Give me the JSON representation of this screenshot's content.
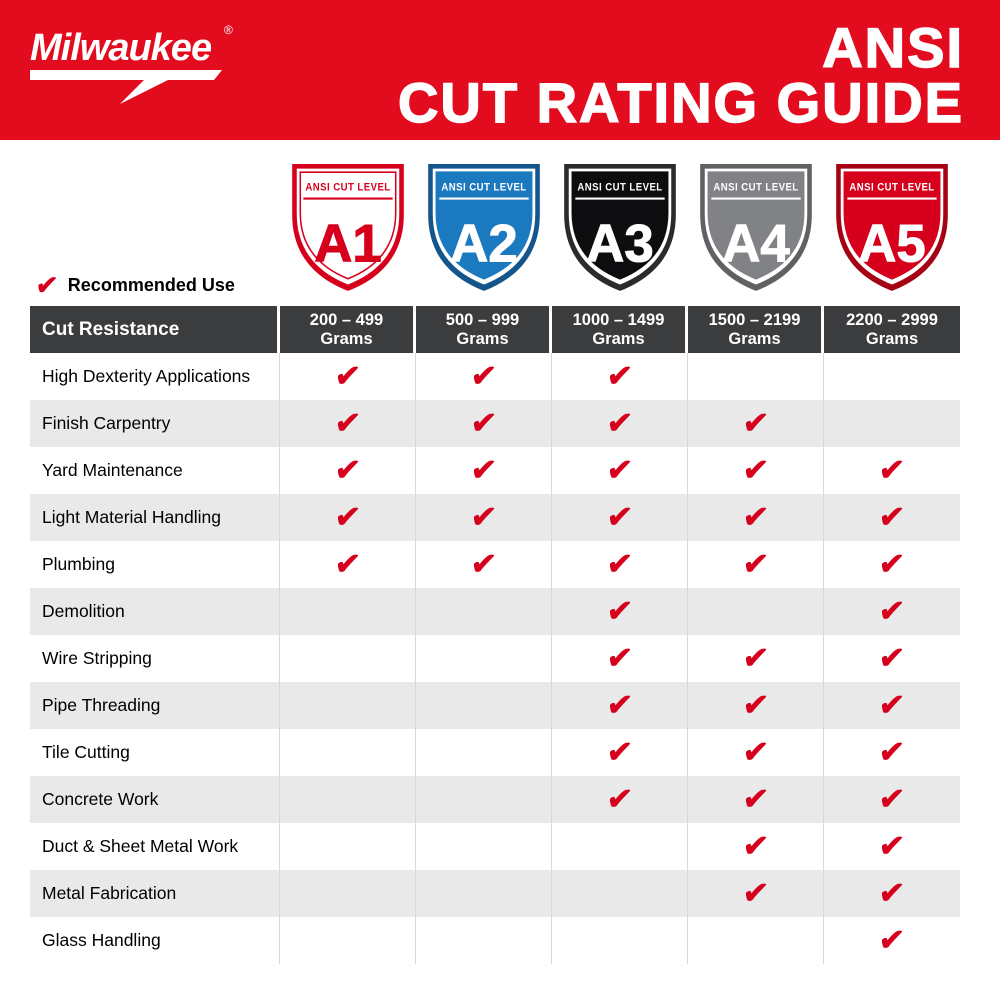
{
  "colors": {
    "banner_red": "#e30c1f",
    "check_red": "#d6001c",
    "header_row_bg": "#3b3c3e",
    "alt_row_bg": "#e9e9e9",
    "grid_line": "#d8d8d8"
  },
  "header": {
    "brand": "Milwaukee",
    "reg": "®",
    "title_line1": "ANSI",
    "title_line2": "CUT RATING GUIDE"
  },
  "levels": [
    {
      "label": "ANSI CUT LEVEL",
      "code": "A1",
      "fill": "#ffffff",
      "text_color": "#d6001c",
      "border": "#d6001c",
      "inner_stroke": "#d6001c"
    },
    {
      "label": "ANSI CUT LEVEL",
      "code": "A2",
      "fill": "#1b79c0",
      "text_color": "#ffffff",
      "border": "#14568c",
      "inner_stroke": "#1b79c0"
    },
    {
      "label": "ANSI CUT LEVEL",
      "code": "A3",
      "fill": "#0d0d0f",
      "text_color": "#ffffff",
      "border": "#2b2b2d",
      "inner_stroke": "#0d0d0f"
    },
    {
      "label": "ANSI CUT LEVEL",
      "code": "A4",
      "fill": "#808285",
      "text_color": "#ffffff",
      "border": "#5f6163",
      "inner_stroke": "#808285"
    },
    {
      "label": "ANSI CUT LEVEL",
      "code": "A5",
      "fill": "#d6001c",
      "text_color": "#ffffff",
      "border": "#a50313",
      "inner_stroke": "#d6001c"
    }
  ],
  "legend": {
    "label": "Recommended Use"
  },
  "chart_data": {
    "type": "table",
    "title": "ANSI CUT RATING GUIDE",
    "corner_header": "Cut Resistance",
    "check_symbol": "✔",
    "columns": [
      {
        "level": "A1",
        "range": "200 – 499",
        "unit": "Grams"
      },
      {
        "level": "A2",
        "range": "500 – 999",
        "unit": "Grams"
      },
      {
        "level": "A3",
        "range": "1000 – 1499",
        "unit": "Grams"
      },
      {
        "level": "A4",
        "range": "1500 – 2199",
        "unit": "Grams"
      },
      {
        "level": "A5",
        "range": "2200 – 2999",
        "unit": "Grams"
      }
    ],
    "rows": [
      {
        "label": "High Dexterity Applications",
        "recommended": [
          true,
          true,
          true,
          false,
          false
        ]
      },
      {
        "label": "Finish Carpentry",
        "recommended": [
          true,
          true,
          true,
          true,
          false
        ]
      },
      {
        "label": "Yard Maintenance",
        "recommended": [
          true,
          true,
          true,
          true,
          true
        ]
      },
      {
        "label": "Light Material Handling",
        "recommended": [
          true,
          true,
          true,
          true,
          true
        ]
      },
      {
        "label": "Plumbing",
        "recommended": [
          true,
          true,
          true,
          true,
          true
        ]
      },
      {
        "label": "Demolition",
        "recommended": [
          false,
          false,
          true,
          false,
          true
        ]
      },
      {
        "label": "Wire Stripping",
        "recommended": [
          false,
          false,
          true,
          true,
          true
        ]
      },
      {
        "label": "Pipe Threading",
        "recommended": [
          false,
          false,
          true,
          true,
          true
        ]
      },
      {
        "label": "Tile Cutting",
        "recommended": [
          false,
          false,
          true,
          true,
          true
        ]
      },
      {
        "label": "Concrete Work",
        "recommended": [
          false,
          false,
          true,
          true,
          true
        ]
      },
      {
        "label": "Duct & Sheet Metal Work",
        "recommended": [
          false,
          false,
          false,
          true,
          true
        ]
      },
      {
        "label": "Metal Fabrication",
        "recommended": [
          false,
          false,
          false,
          true,
          true
        ]
      },
      {
        "label": "Glass Handling",
        "recommended": [
          false,
          false,
          false,
          false,
          true
        ]
      }
    ]
  }
}
